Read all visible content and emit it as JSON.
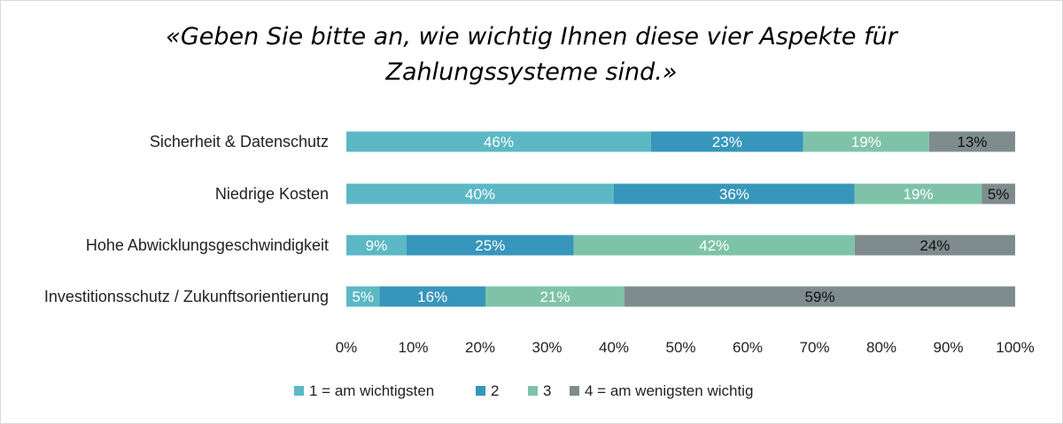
{
  "chart_data": {
    "type": "bar",
    "orientation": "horizontal",
    "stacked": true,
    "percent": true,
    "title_lines": [
      "«Geben Sie bitte an, wie wichtig Ihnen diese vier Aspekte für",
      "Zahlungssysteme sind.»"
    ],
    "categories": [
      "Sicherheit & Datenschutz",
      "Niedrige Kosten",
      "Hohe Abwicklungsgeschwindigkeit",
      "Investitionsschutz / Zukunftsorientierung"
    ],
    "series": [
      {
        "name": "1 = am wichtigsten",
        "color": "#5bb8c4",
        "label_color": "#ffffff",
        "values": [
          46,
          40,
          9,
          5
        ],
        "labels": [
          "46%",
          "40%",
          "9%",
          "5%"
        ]
      },
      {
        "name": "2",
        "color": "#3796bb",
        "label_color": "#ffffff",
        "values": [
          23,
          36,
          25,
          16
        ],
        "labels": [
          "23%",
          "36%",
          "25%",
          "16%"
        ]
      },
      {
        "name": "3",
        "color": "#7ec3a9",
        "label_color": "#ffffff",
        "values": [
          19,
          19,
          42,
          21
        ],
        "labels": [
          "19%",
          "19%",
          "42%",
          "21%"
        ]
      },
      {
        "name": "4 = am wenigsten wichtig",
        "color": "#7f8c8d",
        "label_color": "#111111",
        "values": [
          13,
          5,
          24,
          59
        ],
        "labels": [
          "13%",
          "5%",
          "24%",
          "59%"
        ]
      }
    ],
    "xlim": [
      0,
      100
    ],
    "xticks": [
      "0%",
      "10%",
      "20%",
      "30%",
      "40%",
      "50%",
      "60%",
      "70%",
      "80%",
      "90%",
      "100%"
    ],
    "xlabel": "",
    "ylabel": "",
    "grid": false,
    "legend_position": "bottom"
  }
}
